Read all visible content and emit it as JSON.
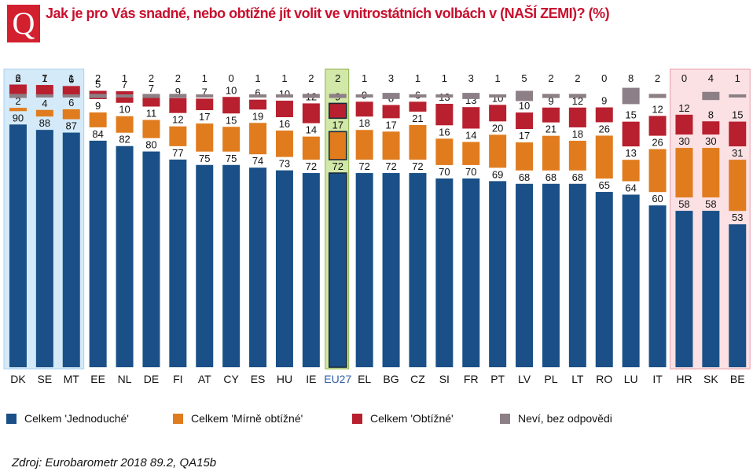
{
  "header": {
    "badge": "Q",
    "title": "Jak je pro Vás snadné, nebo obtížné jít volit ve vnitrostátních volbách v (NAŠÍ ZEMI)? (%)"
  },
  "colors": {
    "easy": "#1a5087",
    "fairly_difficult": "#e07c1e",
    "difficult": "#b8202f",
    "dont_know": "#8c7f86",
    "highlight_blue": "#d5eaf8",
    "highlight_green": "#d2e8a8",
    "highlight_red": "#fbe1e4"
  },
  "chart_data": {
    "type": "bar",
    "layout": "stacked-split",
    "title": "Jak je pro Vás snadné, nebo obtížné jít volit ve vnitrostátních volbách v (NAŠÍ ZEMI)? (%)",
    "categories": [
      "DK",
      "SE",
      "MT",
      "EE",
      "NL",
      "DE",
      "FI",
      "AT",
      "CY",
      "ES",
      "HU",
      "IE",
      "EU27",
      "EL",
      "BG",
      "CZ",
      "SI",
      "FR",
      "PT",
      "LV",
      "PL",
      "LT",
      "RO",
      "LU",
      "IT",
      "HR",
      "SK",
      "BE"
    ],
    "series": [
      {
        "name": "Celkem 'Jednoduché'",
        "key": "easy",
        "values": [
          90,
          88,
          87,
          84,
          82,
          80,
          77,
          75,
          75,
          74,
          73,
          72,
          72,
          72,
          72,
          72,
          70,
          70,
          69,
          68,
          68,
          68,
          65,
          64,
          60,
          58,
          58,
          53
        ]
      },
      {
        "name": "Celkem 'Mírně obtížné'",
        "key": "fairly_difficult",
        "values": [
          2,
          4,
          6,
          9,
          10,
          11,
          12,
          17,
          15,
          19,
          16,
          14,
          17,
          18,
          17,
          21,
          16,
          14,
          20,
          17,
          21,
          18,
          26,
          13,
          26,
          30,
          30,
          31
        ]
      },
      {
        "name": "Celkem 'Obtížné'",
        "key": "difficult",
        "values": [
          6,
          7,
          6,
          5,
          7,
          7,
          9,
          7,
          10,
          6,
          10,
          12,
          9,
          9,
          8,
          6,
          13,
          13,
          10,
          10,
          9,
          12,
          9,
          15,
          12,
          12,
          8,
          15
        ]
      },
      {
        "name": "Neví, bez odpovědi",
        "key": "dont_know",
        "values": [
          2,
          1,
          1,
          2,
          1,
          2,
          2,
          1,
          0,
          1,
          1,
          2,
          2,
          1,
          3,
          1,
          1,
          3,
          1,
          5,
          2,
          2,
          0,
          8,
          2,
          0,
          4,
          1
        ]
      }
    ],
    "highlight_groups": [
      {
        "categories": [
          "DK",
          "SE",
          "MT"
        ],
        "color": "highlight_blue"
      },
      {
        "categories": [
          "EU27"
        ],
        "color": "highlight_green"
      },
      {
        "categories": [
          "HR",
          "SK",
          "BE"
        ],
        "color": "highlight_red"
      }
    ],
    "xlabel": "",
    "ylabel": "",
    "ylim": [
      0,
      100
    ]
  },
  "legend": [
    {
      "label": "Celkem 'Jednoduché'",
      "key": "easy"
    },
    {
      "label": "Celkem 'Mírně obtížné'",
      "key": "fairly_difficult"
    },
    {
      "label": "Celkem 'Obtížné'",
      "key": "difficult"
    },
    {
      "label": "Neví, bez odpovědi",
      "key": "dont_know"
    }
  ],
  "footer": {
    "source": "Zdroj: Eurobarometr 2018 89.2, QA15b"
  }
}
